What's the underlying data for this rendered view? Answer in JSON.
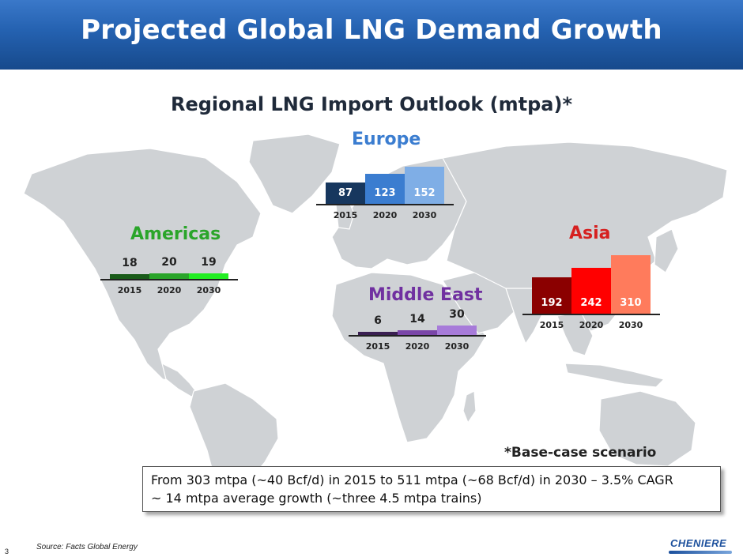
{
  "header": {
    "title": "Projected Global LNG Demand Growth"
  },
  "chart_data": {
    "type": "bar",
    "title": "Regional LNG Import Outlook (mtpa)*",
    "categories": [
      "2015",
      "2020",
      "2030"
    ],
    "units": "mtpa",
    "series": [
      {
        "name": "Europe",
        "values": [
          87,
          123,
          152
        ],
        "colors": [
          "#17375e",
          "#3b7dd0",
          "#7faee6"
        ],
        "label_color": "#3b7dd0"
      },
      {
        "name": "Americas",
        "values": [
          18,
          20,
          19
        ],
        "colors": [
          "#1a5c1a",
          "#2aa52a",
          "#22ee22"
        ],
        "label_color": "#2aa52a"
      },
      {
        "name": "Middle East",
        "values": [
          6,
          14,
          30
        ],
        "colors": [
          "#3a1f52",
          "#7a46a8",
          "#a77bd9"
        ],
        "label_color": "#7030a0"
      },
      {
        "name": "Asia",
        "values": [
          192,
          242,
          310
        ],
        "colors": [
          "#8b0000",
          "#ff0000",
          "#ff7b5c"
        ],
        "label_color": "#d62020"
      }
    ],
    "note": "*Base-case scenario"
  },
  "callout": {
    "line1": "From 303 mtpa (~40 Bcf/d) in 2015 to 511 mtpa (~68 Bcf/d) in 2030 – 3.5% CAGR",
    "line2": "~ 14 mtpa average growth (~three 4.5 mtpa trains)"
  },
  "footer": {
    "source": "Source: Facts Global Energy",
    "page": "3",
    "logo": "CHENIERE"
  }
}
